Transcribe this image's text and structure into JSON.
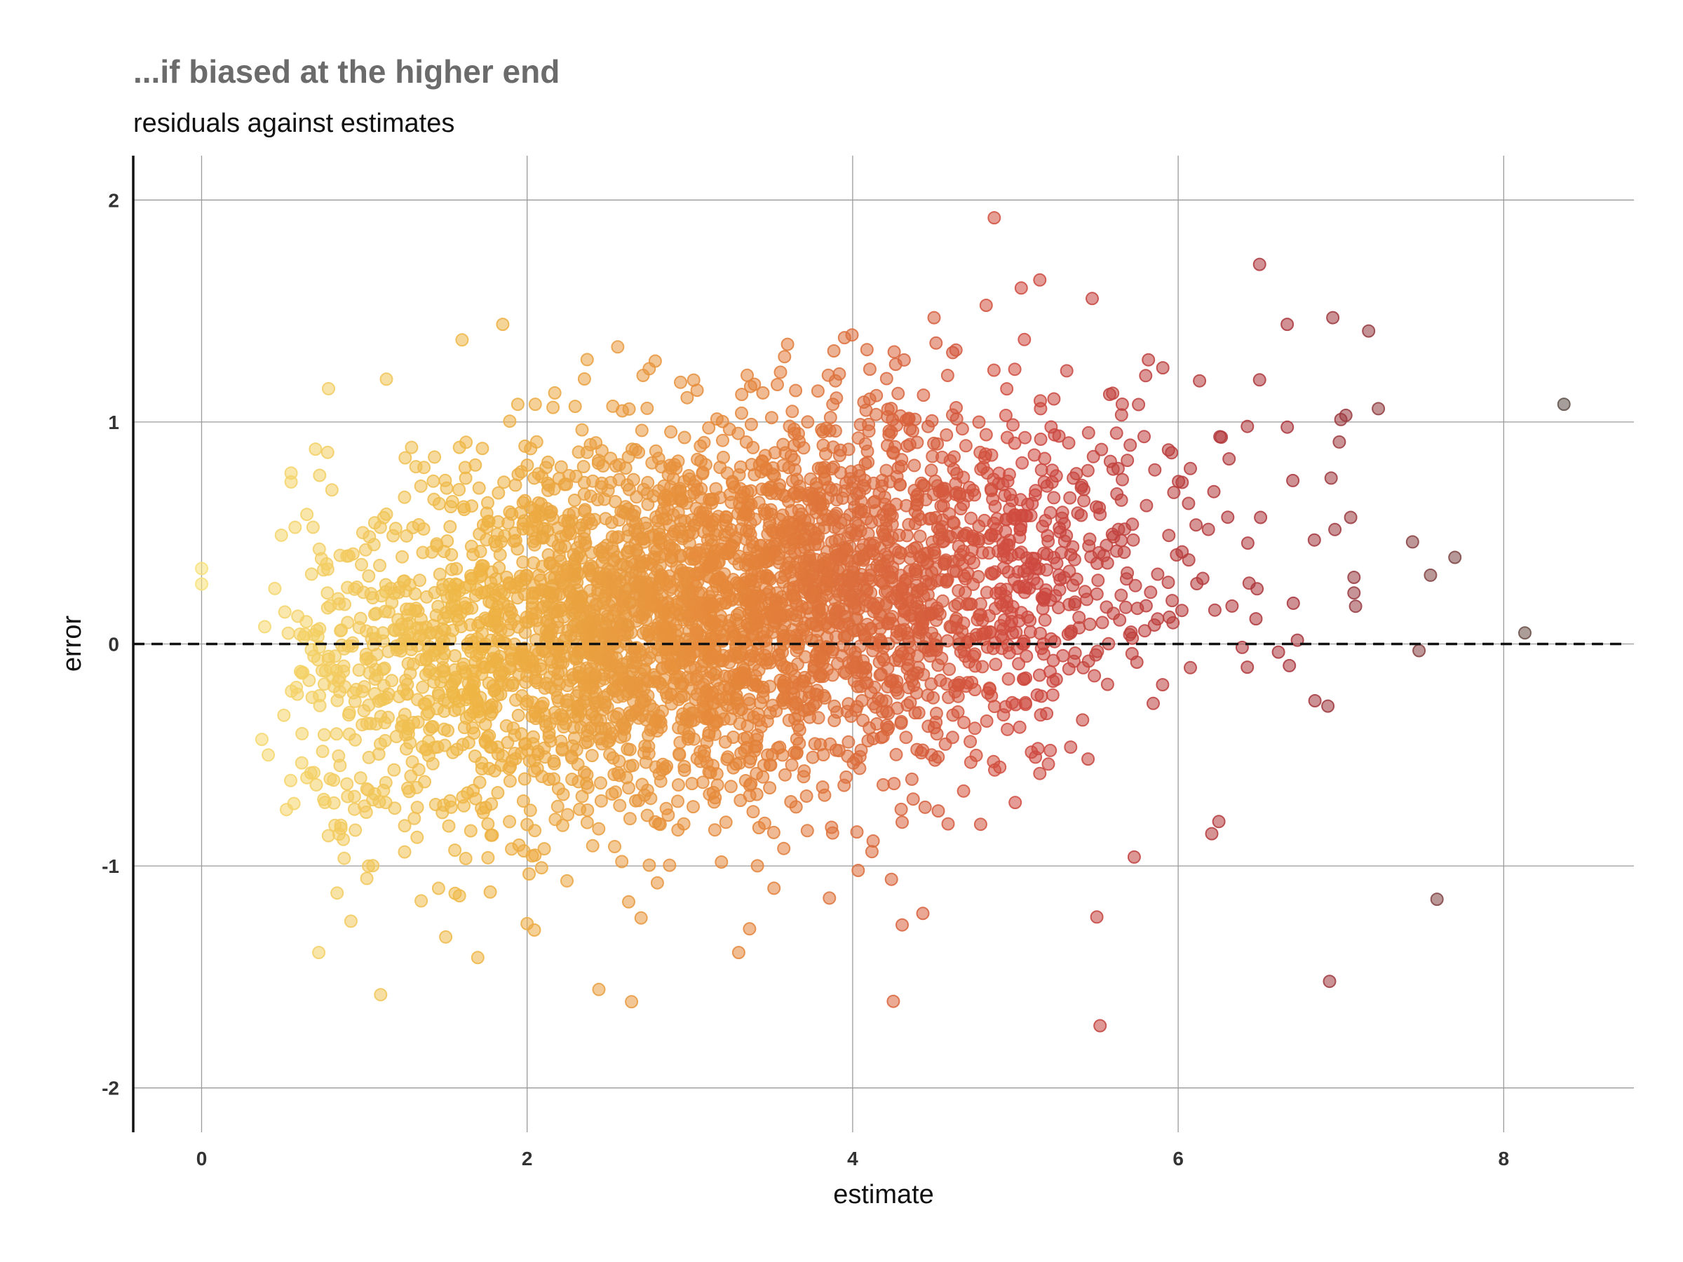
{
  "chart_data": {
    "type": "scatter",
    "title": "...if biased at the higher end",
    "subtitle": "residuals against estimates",
    "xlabel": "estimate",
    "ylabel": "error",
    "xlim": [
      -0.42,
      8.8
    ],
    "ylim": [
      -2.2,
      2.2
    ],
    "x_ticks": [
      0,
      2,
      4,
      6,
      8
    ],
    "y_ticks": [
      2,
      1,
      0,
      -1,
      -2
    ],
    "x_tick_labels": [
      "0",
      "2",
      "4",
      "6",
      "8"
    ],
    "y_tick_labels": [
      "2",
      "1",
      "0",
      "-1",
      "-2"
    ],
    "grid": true,
    "reference_line": {
      "y": 0,
      "style": "dashed"
    },
    "color_scale": [
      "#f7e27a",
      "#eeb544",
      "#e4843a",
      "#cf4a3f",
      "#a8343c",
      "#5c5048"
    ],
    "color_by": "estimate",
    "point_opacity": 0.55,
    "points_approx_count": 4000,
    "points": [
      {
        "x": 0,
        "y": 0.34
      },
      {
        "x": 0,
        "y": 0.27
      },
      {
        "x": 0.37,
        "y": -0.43
      },
      {
        "x": 0.41,
        "y": -0.5
      },
      {
        "x": 0.45,
        "y": 0.25
      },
      {
        "x": 0.49,
        "y": 0.49
      },
      {
        "x": 0.55,
        "y": 0.77
      },
      {
        "x": 0.55,
        "y": 0.73
      },
      {
        "x": 0.72,
        "y": -1.39
      },
      {
        "x": 0.78,
        "y": 1.15
      },
      {
        "x": 1.1,
        "y": -1.58
      },
      {
        "x": 1.5,
        "y": -1.32
      },
      {
        "x": 1.6,
        "y": 1.37
      },
      {
        "x": 1.85,
        "y": 1.44
      },
      {
        "x": 2.05,
        "y": 1.08
      },
      {
        "x": 2.0,
        "y": -1.26
      },
      {
        "x": 2.75,
        "y": 1.24
      },
      {
        "x": 3.3,
        "y": -1.39
      },
      {
        "x": 3.6,
        "y": 1.35
      },
      {
        "x": 3.95,
        "y": 1.38
      },
      {
        "x": 4.25,
        "y": -1.61
      },
      {
        "x": 4.5,
        "y": 1.47
      },
      {
        "x": 4.87,
        "y": 1.92
      },
      {
        "x": 5.15,
        "y": 1.64
      },
      {
        "x": 5.5,
        "y": -1.23
      },
      {
        "x": 5.52,
        "y": -1.72
      },
      {
        "x": 5.73,
        "y": -0.96
      },
      {
        "x": 6.25,
        "y": -0.8
      },
      {
        "x": 6.5,
        "y": 1.71
      },
      {
        "x": 6.5,
        "y": 1.19
      },
      {
        "x": 6.67,
        "y": 1.44
      },
      {
        "x": 6.95,
        "y": 1.47
      },
      {
        "x": 6.93,
        "y": -1.52
      },
      {
        "x": 6.92,
        "y": -0.28
      },
      {
        "x": 6.99,
        "y": 0.91
      },
      {
        "x": 7.03,
        "y": 1.03
      },
      {
        "x": 7.06,
        "y": 0.57
      },
      {
        "x": 7.08,
        "y": 0.3
      },
      {
        "x": 7.08,
        "y": 0.23
      },
      {
        "x": 7.09,
        "y": 0.17
      },
      {
        "x": 7.17,
        "y": 1.41
      },
      {
        "x": 7.23,
        "y": 1.06
      },
      {
        "x": 7.44,
        "y": 0.46
      },
      {
        "x": 7.48,
        "y": -0.03
      },
      {
        "x": 7.55,
        "y": 0.31
      },
      {
        "x": 7.59,
        "y": -1.15
      },
      {
        "x": 7.7,
        "y": 0.39
      },
      {
        "x": 8.13,
        "y": 0.05
      },
      {
        "x": 8.37,
        "y": 1.08
      }
    ]
  }
}
